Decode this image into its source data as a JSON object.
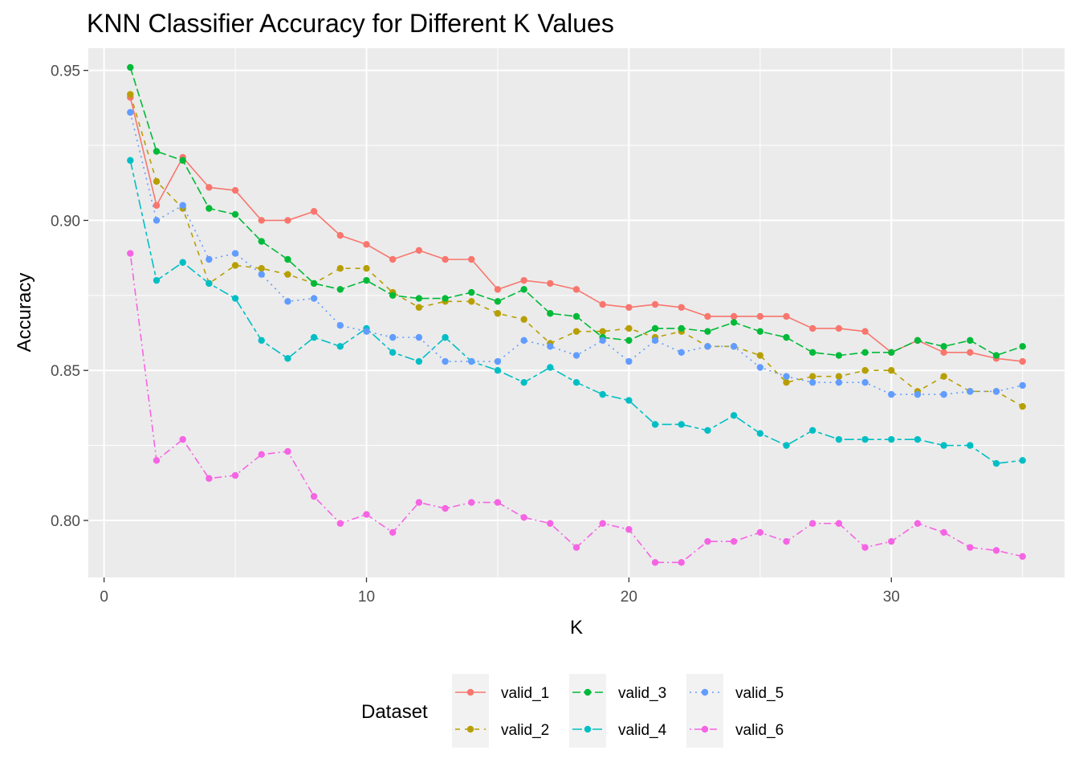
{
  "chart_data": {
    "type": "line",
    "title": "KNN Classifier Accuracy for Different K Values",
    "xlabel": "K",
    "ylabel": "Accuracy",
    "xlim": [
      -0.6,
      36.6
    ],
    "ylim": [
      0.781,
      0.9574
    ],
    "x_ticks": [
      0,
      10,
      20,
      30
    ],
    "y_ticks": [
      0.8,
      0.85,
      0.9,
      0.95
    ],
    "x_tick_labels": [
      "0",
      "10",
      "20",
      "30"
    ],
    "y_tick_labels": [
      "0.80",
      "0.85",
      "0.90",
      "0.95"
    ],
    "grid": true,
    "legend": {
      "title": "Dataset",
      "position": "bottom"
    },
    "x": [
      1,
      2,
      3,
      4,
      5,
      6,
      7,
      8,
      9,
      10,
      11,
      12,
      13,
      14,
      15,
      16,
      17,
      18,
      19,
      20,
      21,
      22,
      23,
      24,
      25,
      26,
      27,
      28,
      29,
      30,
      31,
      32,
      33,
      34,
      35
    ],
    "series": [
      {
        "name": "valid_1",
        "color": "#F8766D",
        "dash": "solid",
        "values": [
          0.941,
          0.905,
          0.921,
          0.911,
          0.91,
          0.9,
          0.9,
          0.903,
          0.895,
          0.892,
          0.887,
          0.89,
          0.887,
          0.887,
          0.877,
          0.88,
          0.879,
          0.877,
          0.872,
          0.871,
          0.872,
          0.871,
          0.868,
          0.868,
          0.868,
          0.868,
          0.864,
          0.864,
          0.863,
          0.856,
          0.86,
          0.856,
          0.856,
          0.854,
          0.853
        ]
      },
      {
        "name": "valid_2",
        "color": "#B79F00",
        "dash": "dashed",
        "values": [
          0.942,
          0.913,
          0.904,
          0.879,
          0.885,
          0.884,
          0.882,
          0.879,
          0.884,
          0.884,
          0.876,
          0.871,
          0.873,
          0.873,
          0.869,
          0.867,
          0.859,
          0.863,
          0.863,
          0.864,
          0.861,
          0.863,
          0.858,
          0.858,
          0.855,
          0.846,
          0.848,
          0.848,
          0.85,
          0.85,
          0.843,
          0.848,
          0.843,
          0.843,
          0.838
        ]
      },
      {
        "name": "valid_3",
        "color": "#00BA38",
        "dash": "longdash",
        "values": [
          0.951,
          0.923,
          0.92,
          0.904,
          0.902,
          0.893,
          0.887,
          0.879,
          0.877,
          0.88,
          0.875,
          0.874,
          0.874,
          0.876,
          0.873,
          0.877,
          0.869,
          0.868,
          0.861,
          0.86,
          0.864,
          0.864,
          0.863,
          0.866,
          0.863,
          0.861,
          0.856,
          0.855,
          0.856,
          0.856,
          0.86,
          0.858,
          0.86,
          0.855,
          0.858
        ]
      },
      {
        "name": "valid_4",
        "color": "#00BFC4",
        "dash": "twodash",
        "values": [
          0.92,
          0.88,
          0.886,
          0.879,
          0.874,
          0.86,
          0.854,
          0.861,
          0.858,
          0.864,
          0.856,
          0.853,
          0.861,
          0.853,
          0.85,
          0.846,
          0.851,
          0.846,
          0.842,
          0.84,
          0.832,
          0.832,
          0.83,
          0.835,
          0.829,
          0.825,
          0.83,
          0.827,
          0.827,
          0.827,
          0.827,
          0.825,
          0.825,
          0.819,
          0.82
        ]
      },
      {
        "name": "valid_5",
        "color": "#619CFF",
        "dash": "dotted",
        "values": [
          0.936,
          0.9,
          0.905,
          0.887,
          0.889,
          0.882,
          0.873,
          0.874,
          0.865,
          0.863,
          0.861,
          0.861,
          0.853,
          0.853,
          0.853,
          0.86,
          0.858,
          0.855,
          0.86,
          0.853,
          0.86,
          0.856,
          0.858,
          0.858,
          0.851,
          0.848,
          0.846,
          0.846,
          0.846,
          0.842,
          0.842,
          0.842,
          0.843,
          0.843,
          0.845
        ]
      },
      {
        "name": "valid_6",
        "color": "#F564E3",
        "dash": "dotdash",
        "values": [
          0.889,
          0.82,
          0.827,
          0.814,
          0.815,
          0.822,
          0.823,
          0.808,
          0.799,
          0.802,
          0.796,
          0.806,
          0.804,
          0.806,
          0.806,
          0.801,
          0.799,
          0.791,
          0.799,
          0.797,
          0.786,
          0.786,
          0.793,
          0.793,
          0.796,
          0.793,
          0.799,
          0.799,
          0.791,
          0.793,
          0.799,
          0.796,
          0.791,
          0.79,
          0.788
        ]
      }
    ]
  }
}
